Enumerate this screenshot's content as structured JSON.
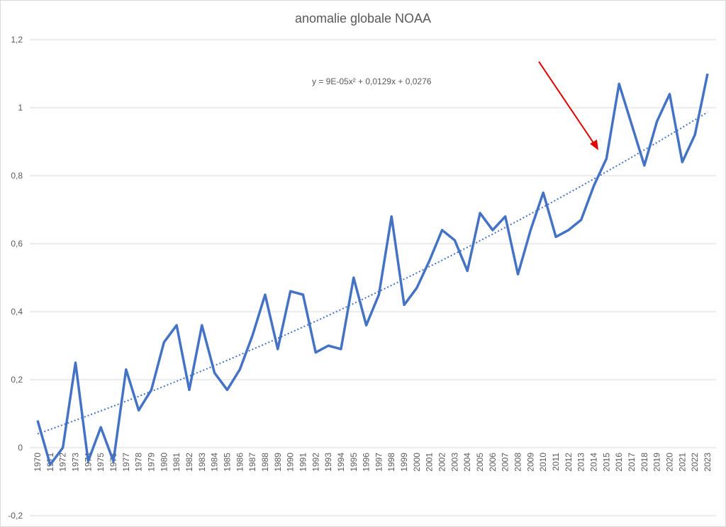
{
  "chart_data": {
    "type": "line",
    "title": "anomalie globale NOAA",
    "xlabel": "",
    "ylabel": "",
    "ylim": [
      -0.2,
      1.2
    ],
    "yticks": [
      "-0,2",
      "0",
      "0,2",
      "0,4",
      "0,6",
      "0,8",
      "1",
      "1,2"
    ],
    "grid": true,
    "legend": "none",
    "categories": [
      "1970",
      "1971",
      "1972",
      "1973",
      "1974",
      "1975",
      "1976",
      "1977",
      "1978",
      "1979",
      "1980",
      "1981",
      "1982",
      "1983",
      "1984",
      "1985",
      "1986",
      "1987",
      "1988",
      "1989",
      "1990",
      "1991",
      "1992",
      "1993",
      "1994",
      "1995",
      "1996",
      "1997",
      "1998",
      "1999",
      "2000",
      "2001",
      "2002",
      "2003",
      "2004",
      "2005",
      "2006",
      "2007",
      "2008",
      "2009",
      "2010",
      "2011",
      "2012",
      "2013",
      "2014",
      "2015",
      "2016",
      "2017",
      "2018",
      "2019",
      "2020",
      "2021",
      "2022",
      "2023"
    ],
    "series": [
      {
        "values": [
          0.08,
          -0.05,
          0.0,
          0.25,
          -0.04,
          0.06,
          -0.04,
          0.23,
          0.11,
          0.17,
          0.31,
          0.36,
          0.17,
          0.36,
          0.22,
          0.17,
          0.23,
          0.33,
          0.45,
          0.29,
          0.46,
          0.45,
          0.28,
          0.3,
          0.29,
          0.5,
          0.36,
          0.45,
          0.68,
          0.42,
          0.47,
          0.55,
          0.64,
          0.61,
          0.52,
          0.69,
          0.64,
          0.68,
          0.51,
          0.64,
          0.75,
          0.62,
          0.64,
          0.67,
          0.77,
          0.85,
          1.07,
          0.95,
          0.83,
          0.96,
          1.04,
          0.84,
          0.92,
          1.1
        ],
        "color": "#4472c4"
      }
    ],
    "trendline": {
      "type": "polynomial",
      "order": 2,
      "coefficients": [
        9e-05,
        0.0129,
        0.0276
      ],
      "style": "dotted",
      "color": "#4472c4",
      "equation_label": "y = 9E-05x² + 0,0129x + 0,0276"
    },
    "annotation_arrow": {
      "color": "#e00000",
      "points_to": "2015"
    }
  }
}
